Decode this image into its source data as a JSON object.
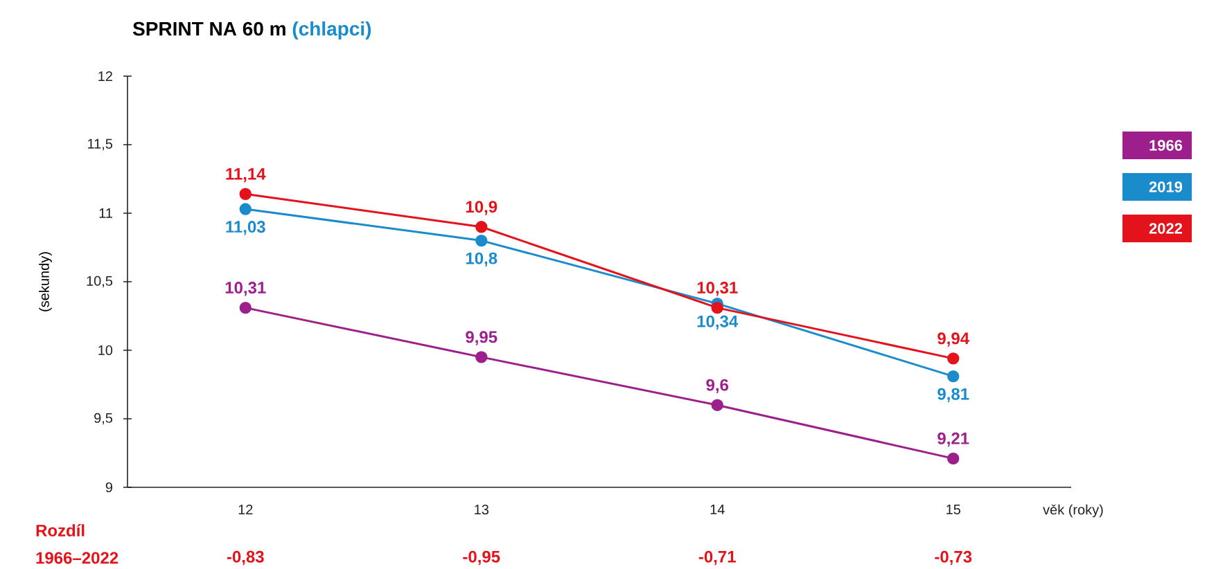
{
  "chart_data": {
    "type": "line",
    "title": "SPRINT NA 60 m",
    "subtitle": "(chlapci)",
    "ylabel": "(sekundy)",
    "xlabel": "věk (roky)",
    "categories": [
      "12",
      "13",
      "14",
      "15"
    ],
    "ylim": [
      9,
      12
    ],
    "yticks": [
      9,
      {
        "value": 9.5,
        "label": "9,5"
      },
      10,
      {
        "value": 10.5,
        "label": "10,5"
      },
      11,
      {
        "value": 11.5,
        "label": "11,5"
      },
      12
    ],
    "series": [
      {
        "name": "1966",
        "color": "#9c1f8c",
        "values": [
          10.31,
          9.95,
          9.6,
          9.21
        ],
        "value_labels": [
          "10,31",
          "9,95",
          "9,6",
          "9,21"
        ]
      },
      {
        "name": "2019",
        "color": "#1a8ccc",
        "values": [
          11.03,
          10.8,
          10.34,
          9.81
        ],
        "value_labels": [
          "11,03",
          "10,8",
          "10,34",
          "9,81"
        ]
      },
      {
        "name": "2022",
        "color": "#e3121b",
        "values": [
          11.14,
          10.9,
          10.31,
          9.94
        ],
        "value_labels": [
          "11,14",
          "10,9",
          "10,31",
          "9,94"
        ]
      }
    ],
    "marker": "circle",
    "line_style": "solid",
    "legend": "right",
    "annotations": [
      "Rozdíl",
      "1966–2022",
      "-0,83",
      "-0,95",
      "-0,71",
      "-0,73"
    ]
  }
}
